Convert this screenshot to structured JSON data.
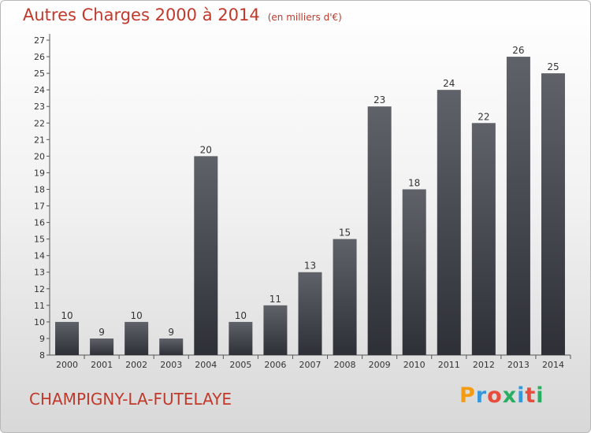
{
  "header": {
    "title": "Autres Charges 2000 à 2014",
    "unit": "(en milliers d'€)"
  },
  "footer": {
    "location": "CHAMPIGNY-LA-FUTELAYE"
  },
  "brand": {
    "letters": [
      "P",
      "r",
      "o",
      "x",
      "i",
      "t",
      "i"
    ],
    "colors": [
      "#f39c12",
      "#3498db",
      "#e74c3c",
      "#27ae60",
      "#3498db",
      "#e74c3c",
      "#27ae60"
    ]
  },
  "colors": {
    "bar_top": "#5f6369",
    "bar_bottom": "#2d3036",
    "title": "#c0392b"
  },
  "chart_data": {
    "type": "bar",
    "title": "Autres Charges 2000 à 2014",
    "subtitle": "(en milliers d'€)",
    "xlabel": "",
    "ylabel": "",
    "categories": [
      "2000",
      "2001",
      "2002",
      "2003",
      "2004",
      "2005",
      "2006",
      "2007",
      "2008",
      "2009",
      "2010",
      "2011",
      "2012",
      "2013",
      "2014"
    ],
    "values": [
      10,
      9,
      10,
      9,
      20,
      10,
      11,
      13,
      15,
      23,
      18,
      24,
      22,
      26,
      25
    ],
    "ylim": [
      8,
      27
    ],
    "yticks": [
      8,
      9,
      10,
      11,
      12,
      13,
      14,
      15,
      16,
      17,
      18,
      19,
      20,
      21,
      22,
      23,
      24,
      25,
      26,
      27
    ],
    "grid": false,
    "legend": "none"
  }
}
